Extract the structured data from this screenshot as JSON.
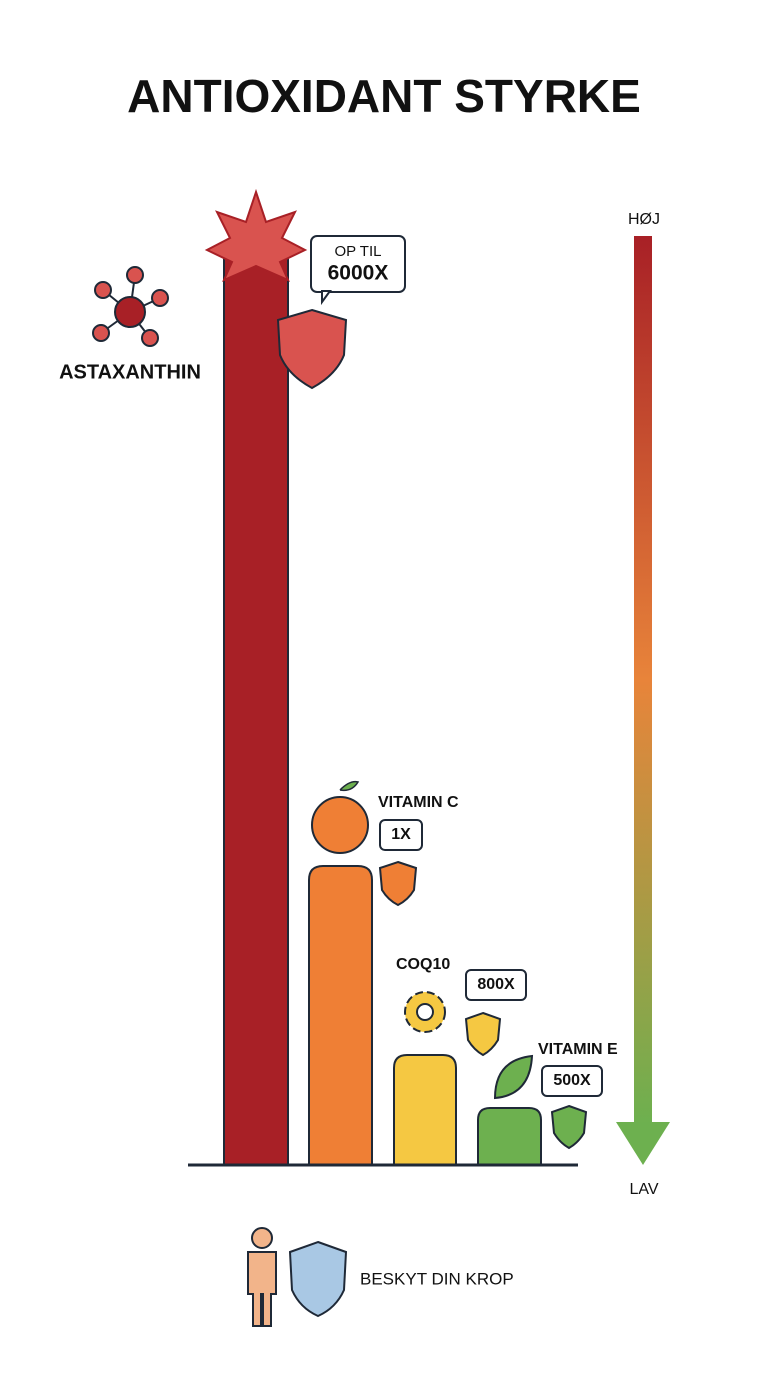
{
  "title": "ANTIOXIDANT STYRKE",
  "items": [
    {
      "name": "ASTAXANTHIN",
      "label_prefix": "OP TIL",
      "label": "6000X"
    },
    {
      "name": "VITAMIN C",
      "label": "1X"
    },
    {
      "name": "COQ10",
      "label": "800X"
    },
    {
      "name": "VITAMIN E",
      "label": "500X"
    }
  ],
  "scale": {
    "high": "HØJ",
    "low": "LAV"
  },
  "footer": "BESKYT DIN KROP"
}
